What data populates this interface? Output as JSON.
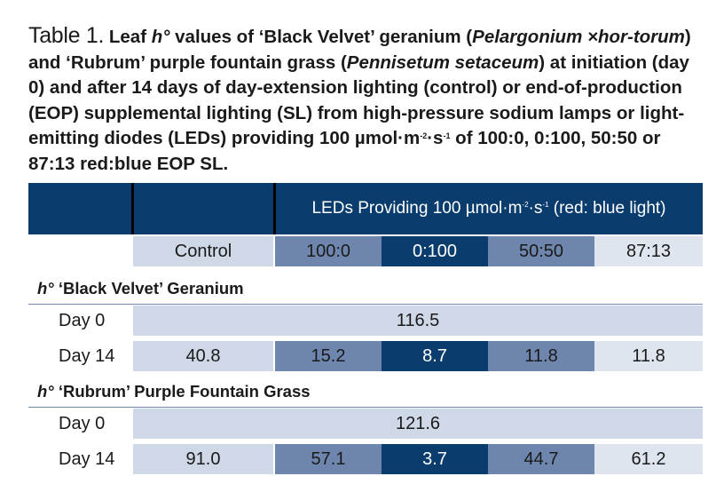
{
  "caption": {
    "label": "Table 1.",
    "p1": " Leaf ",
    "h1": "h°",
    "p2": " values of ‘Black Velvet’ geranium (",
    "sp1": "Pelargonium ×hor-torum",
    "p3": ") and ‘Rubrum’ purple fountain grass (",
    "sp2": "Pennisetum setaceum",
    "p4": ") at initiation (day 0) and after 14 days of day-extension lighting (control) or end-of-production (EOP) supplemental lighting (SL) from high-pressure sodium lamps or light-emitting diodes (LEDs) providing 100 µmol·m",
    "sup1": "-2",
    "p5": "·s",
    "sup2": "-1",
    "p6": " of 100:0, 0:100, 50:50 or 87:13 red:blue EOP SL."
  },
  "header": {
    "leds_a": "LEDs Providing 100 µmol·m",
    "leds_sup1": "-2",
    "leds_b": "·s",
    "leds_sup2": "-1",
    "leds_c": " (red: blue light)",
    "control": "Control",
    "ratio_100_0": "100:0",
    "ratio_0_100": "0:100",
    "ratio_50_50": "50:50",
    "ratio_87_13": "87:13"
  },
  "geranium": {
    "h": "h°",
    "title": " ‘Black Velvet’ Geranium",
    "day0_label": "Day 0",
    "day0_value": "116.5",
    "day14_label": "Day 14",
    "day14": {
      "control": "40.8",
      "r100_0": "15.2",
      "r0_100": "8.7",
      "r50_50": "11.8",
      "r87_13": "11.8"
    }
  },
  "grass": {
    "h": "h°",
    "title": " ‘Rubrum’ Purple Fountain Grass",
    "day0_label": "Day 0",
    "day0_value": "121.6",
    "day14_label": "Day 14",
    "day14": {
      "control": "91.0",
      "r100_0": "57.1",
      "r0_100": "3.7",
      "r50_50": "44.7",
      "r87_13": "61.2"
    }
  }
}
